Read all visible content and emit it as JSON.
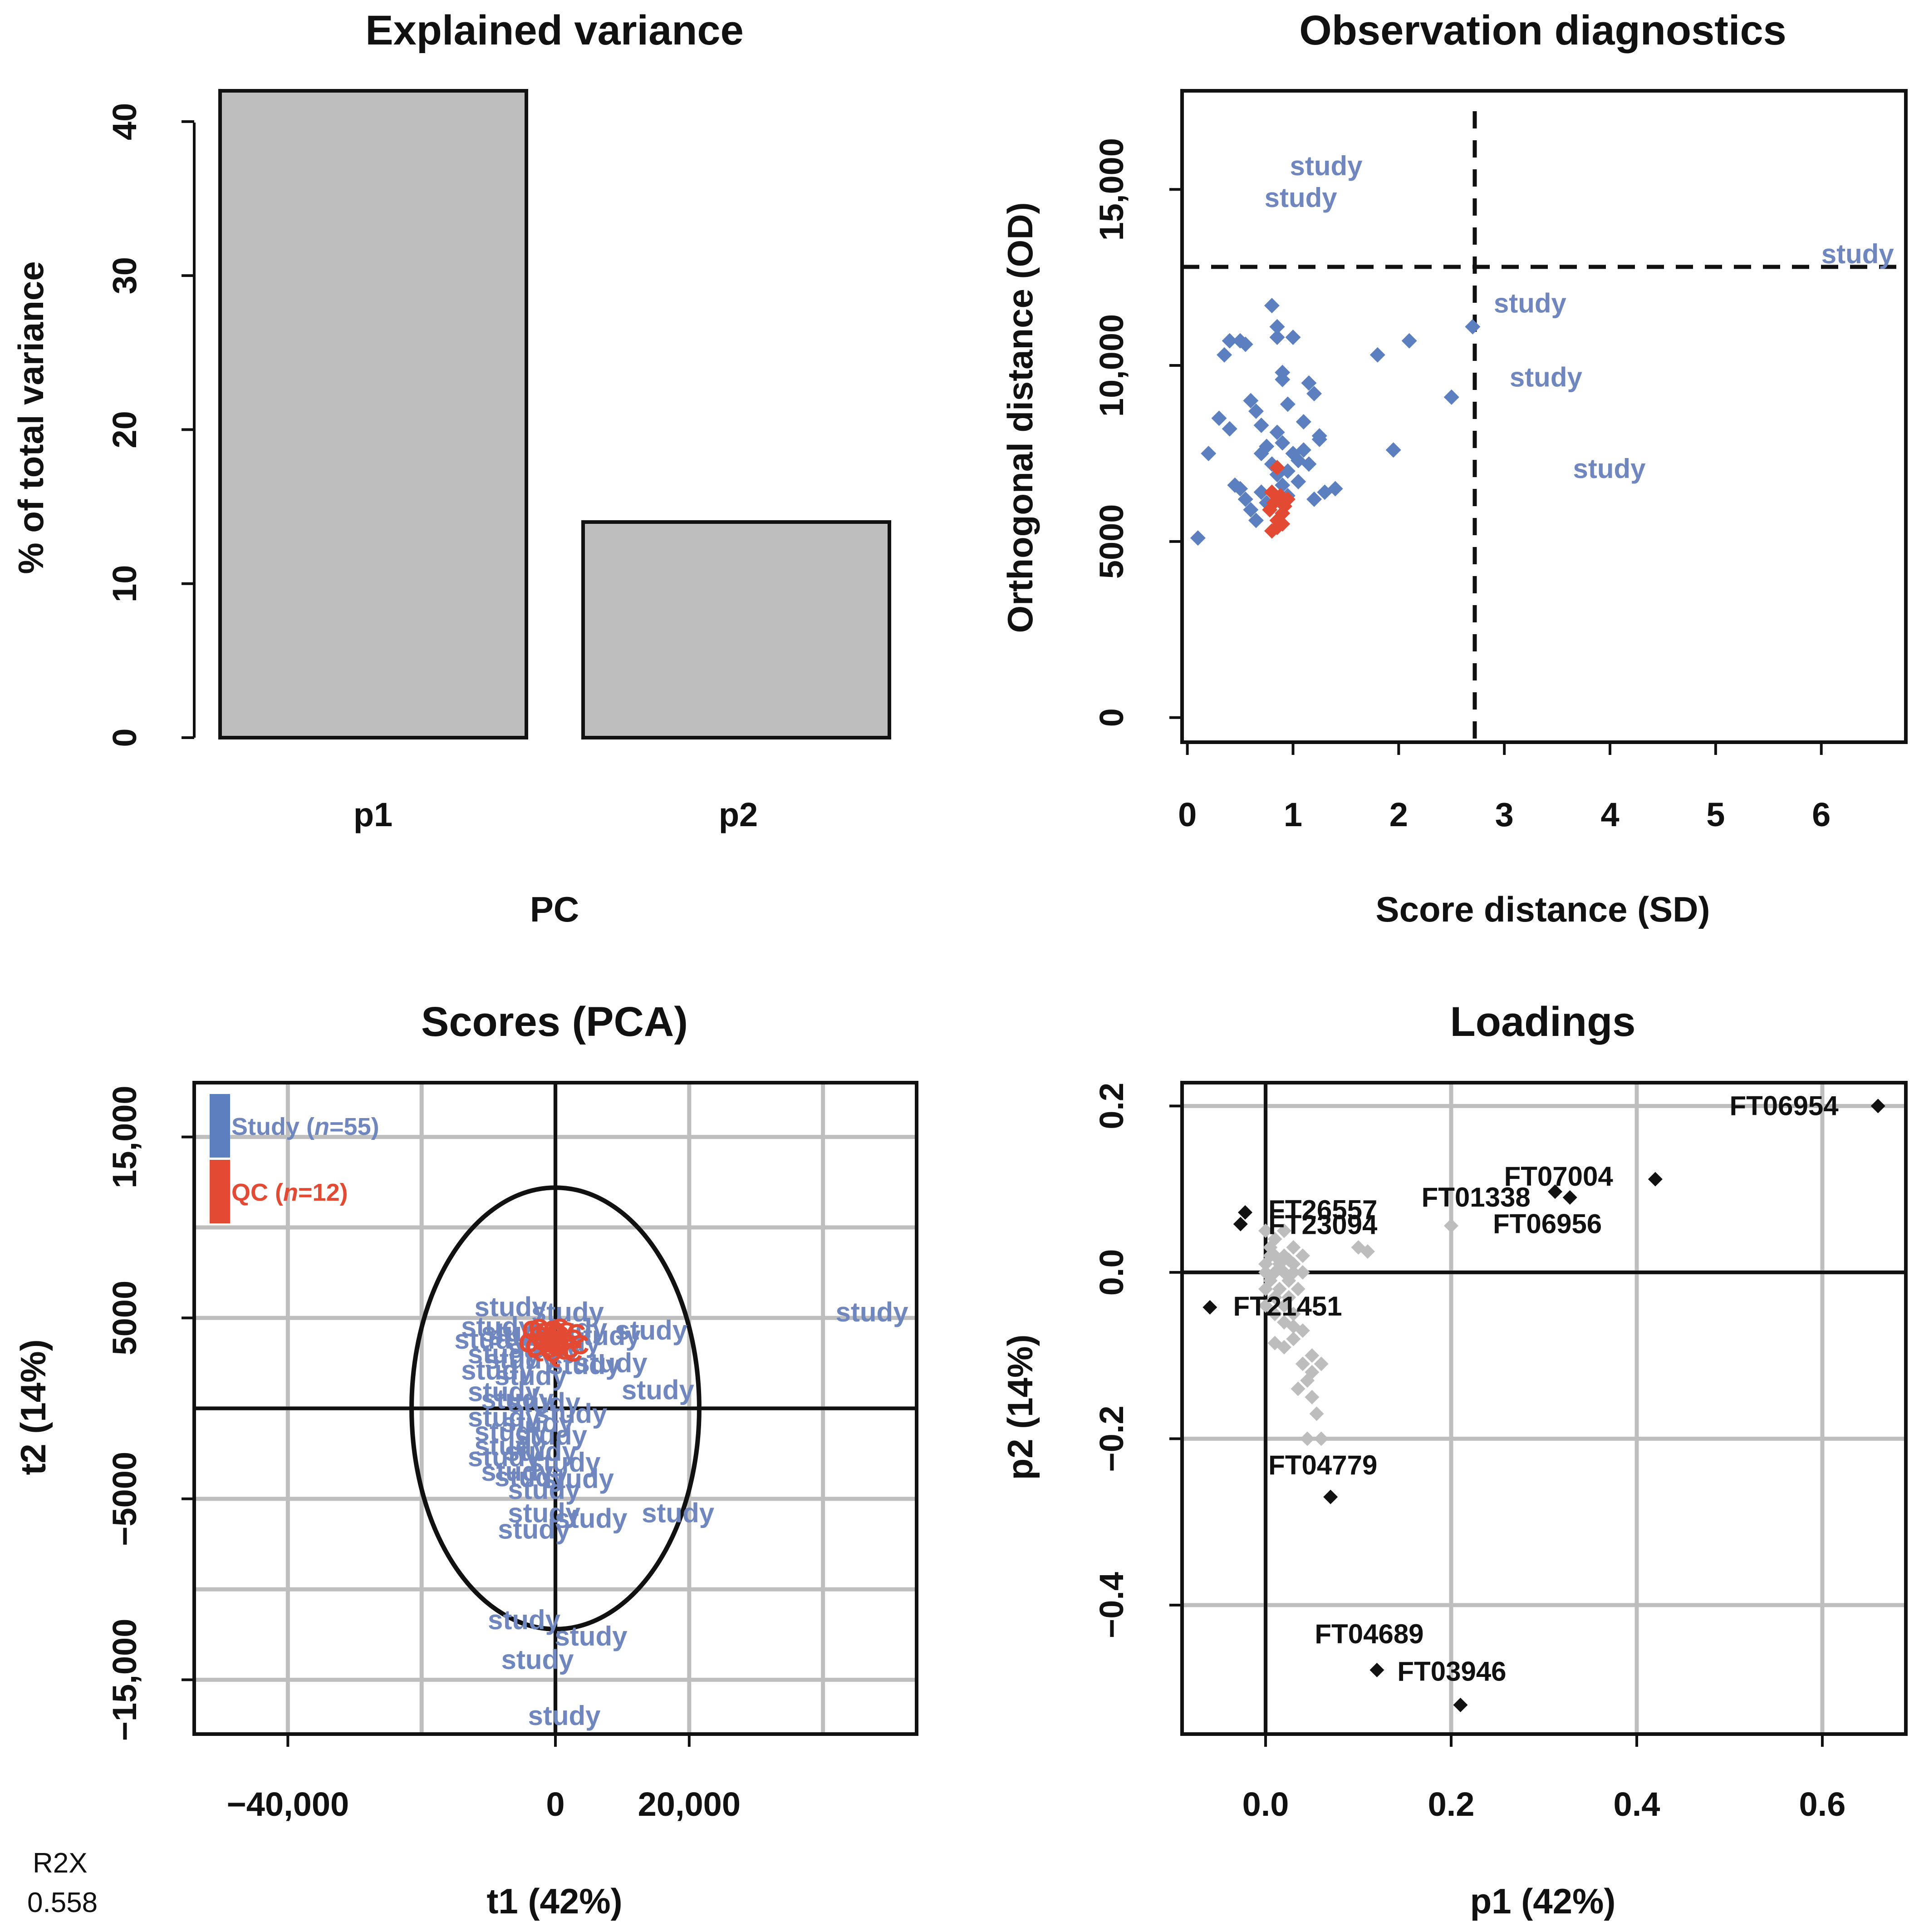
{
  "r2x": {
    "label": "R2X",
    "value": "0.558"
  },
  "colors": {
    "study": "#5b7fbf",
    "study_text": "#6f87be",
    "qc": "#e34a33",
    "bar": "#bebebe",
    "grid": "#bebebe",
    "black": "#111111",
    "loading_grey": "#bdbdbd"
  },
  "chart_data": [
    {
      "id": "explained",
      "type": "bar",
      "title": "Explained variance",
      "xlabel": "PC",
      "ylabel": "% of total variance",
      "categories": [
        "p1",
        "p2"
      ],
      "values": [
        42,
        14
      ],
      "ylim": [
        0,
        42
      ],
      "yticks": [
        0,
        10,
        20,
        30,
        40
      ],
      "ytick_labels": [
        "0",
        "10",
        "20",
        "30",
        "40"
      ]
    },
    {
      "id": "diagnostics",
      "type": "scatter",
      "title": "Observation diagnostics",
      "xlabel": "Score distance (SD)",
      "ylabel": "Orthogonal distance (OD)",
      "xlim": [
        -0.05,
        6.8
      ],
      "ylim": [
        -700,
        17800
      ],
      "xticks": [
        0,
        1,
        2,
        3,
        4,
        5,
        6
      ],
      "xtick_labels": [
        "0",
        "1",
        "2",
        "3",
        "4",
        "5",
        "6"
      ],
      "yticks": [
        0,
        5000,
        10000,
        15000
      ],
      "ytick_labels": [
        "0",
        "5000",
        "10,000",
        "15,000"
      ],
      "sd_cutoff": 2.72,
      "od_cutoff": 12800,
      "study": [
        [
          0.1,
          5100
        ],
        [
          0.2,
          7500
        ],
        [
          0.3,
          8500
        ],
        [
          0.35,
          10300
        ],
        [
          0.4,
          10700
        ],
        [
          0.45,
          6600
        ],
        [
          0.5,
          10700
        ],
        [
          0.55,
          10600
        ],
        [
          0.55,
          6200
        ],
        [
          0.6,
          9000
        ],
        [
          0.6,
          5900
        ],
        [
          0.65,
          5600
        ],
        [
          0.7,
          6400
        ],
        [
          0.7,
          7500
        ],
        [
          0.7,
          8300
        ],
        [
          0.75,
          7700
        ],
        [
          0.75,
          6100
        ],
        [
          0.8,
          11700
        ],
        [
          0.8,
          7200
        ],
        [
          0.85,
          8100
        ],
        [
          0.85,
          10800
        ],
        [
          0.85,
          11100
        ],
        [
          0.85,
          6900
        ],
        [
          0.9,
          9600
        ],
        [
          0.9,
          9800
        ],
        [
          0.9,
          7800
        ],
        [
          0.9,
          6600
        ],
        [
          0.95,
          6300
        ],
        [
          0.95,
          7000
        ],
        [
          1.0,
          10800
        ],
        [
          1.0,
          7500
        ],
        [
          1.05,
          7300
        ],
        [
          1.05,
          6700
        ],
        [
          1.1,
          8400
        ],
        [
          1.1,
          7600
        ],
        [
          1.15,
          7200
        ],
        [
          1.15,
          9500
        ],
        [
          1.2,
          9200
        ],
        [
          1.2,
          6200
        ],
        [
          1.25,
          7900
        ],
        [
          1.25,
          8000
        ],
        [
          1.3,
          6400
        ],
        [
          1.4,
          6500
        ],
        [
          0.4,
          8200
        ],
        [
          0.5,
          6500
        ],
        [
          0.65,
          8700
        ],
        [
          0.95,
          8900
        ],
        [
          1.8,
          10300
        ],
        [
          1.95,
          7600
        ],
        [
          2.1,
          10700
        ],
        [
          2.5,
          9100
        ],
        [
          2.7,
          11100
        ]
      ],
      "qc": [
        [
          0.8,
          6400
        ],
        [
          0.8,
          5300
        ],
        [
          0.82,
          6100
        ],
        [
          0.85,
          7100
        ],
        [
          0.85,
          5600
        ],
        [
          0.88,
          6300
        ],
        [
          0.9,
          5800
        ],
        [
          0.92,
          6000
        ],
        [
          0.95,
          6200
        ],
        [
          0.85,
          5400
        ],
        [
          0.78,
          5900
        ],
        [
          0.9,
          5500
        ]
      ],
      "labels": [
        {
          "text": "study",
          "x": 0.97,
          "y": 15400
        },
        {
          "text": "study",
          "x": 0.73,
          "y": 14500
        },
        {
          "text": "study",
          "x": 6.0,
          "y": 12900
        },
        {
          "text": "study",
          "x": 2.9,
          "y": 11500
        },
        {
          "text": "study",
          "x": 3.05,
          "y": 9400
        },
        {
          "text": "study",
          "x": 3.65,
          "y": 6800
        }
      ]
    },
    {
      "id": "scores",
      "type": "scatter",
      "title": "Scores (PCA)",
      "xlabel": "t1 (42%)",
      "ylabel": "t2 (14%)",
      "xlim": [
        -54000,
        54000
      ],
      "ylim": [
        -18000,
        18000
      ],
      "xgrid": [
        -40000,
        -20000,
        0,
        20000,
        40000
      ],
      "ygrid": [
        -15000,
        -10000,
        -5000,
        0,
        5000,
        10000,
        15000
      ],
      "xticks": [
        -40000,
        0,
        20000
      ],
      "xtick_labels": [
        "−40,000",
        "0",
        "20,000"
      ],
      "yticks": [
        -15000,
        -5000,
        5000,
        15000
      ],
      "ytick_labels": [
        "−15,000",
        "−5000",
        "5000",
        "15,000"
      ],
      "ellipse": {
        "rx": 21500,
        "ry": 12200
      },
      "legend": [
        {
          "label": "Study (",
          "n_label": "n",
          "count": "=55)",
          "color": "#5b7fbf"
        },
        {
          "label": "QC (",
          "n_label": "n",
          "count": "=12)",
          "color": "#e34a33"
        }
      ],
      "study_labels": [
        [
          -6000,
          5600
        ],
        [
          2500,
          5300
        ],
        [
          -8000,
          4500
        ],
        [
          -5000,
          4200
        ],
        [
          3000,
          4400
        ],
        [
          15000,
          4300
        ],
        [
          -4000,
          4000
        ],
        [
          8000,
          4000
        ],
        [
          -7000,
          3000
        ],
        [
          5000,
          2400
        ],
        [
          9000,
          2500
        ],
        [
          -8000,
          2100
        ],
        [
          -3000,
          1800
        ],
        [
          16000,
          1000
        ],
        [
          -7000,
          900
        ],
        [
          -5000,
          500
        ],
        [
          -1000,
          300
        ],
        [
          3000,
          -300
        ],
        [
          -7000,
          -500
        ],
        [
          -2000,
          -800
        ],
        [
          -6000,
          -1300
        ],
        [
          0,
          -1500
        ],
        [
          -6000,
          -2100
        ],
        [
          -1500,
          -2400
        ],
        [
          -7000,
          -2700
        ],
        [
          2000,
          -3000
        ],
        [
          -5000,
          -3500
        ],
        [
          -3000,
          -3800
        ],
        [
          4000,
          -3900
        ],
        [
          -1000,
          -4500
        ],
        [
          -1000,
          -5800
        ],
        [
          6000,
          -6100
        ],
        [
          19000,
          -5800
        ],
        [
          -2500,
          -6700
        ],
        [
          -4000,
          -11700
        ],
        [
          6000,
          -12600
        ],
        [
          -2000,
          -13900
        ],
        [
          2000,
          -17000
        ],
        [
          48000,
          5300
        ],
        [
          -9000,
          3800
        ],
        [
          -1000,
          3300
        ],
        [
          2000,
          3600
        ],
        [
          -4500,
          2700
        ]
      ],
      "qc_points": [
        [
          -3000,
          4300
        ],
        [
          -2000,
          4000
        ],
        [
          -1000,
          4200
        ],
        [
          0,
          3800
        ],
        [
          -2500,
          3400
        ],
        [
          -500,
          3300
        ],
        [
          1000,
          3500
        ],
        [
          -1500,
          3700
        ],
        [
          500,
          4100
        ],
        [
          -3500,
          3600
        ],
        [
          -2000,
          4400
        ],
        [
          0,
          3100
        ]
      ]
    },
    {
      "id": "loadings",
      "type": "scatter",
      "title": "Loadings",
      "xlabel": "p1 (42%)",
      "ylabel": "p2 (14%)",
      "xlim": [
        -0.09,
        0.69
      ],
      "ylim": [
        -0.555,
        0.228
      ],
      "xgrid": [
        0.0,
        0.2,
        0.4,
        0.6
      ],
      "ygrid": [
        -0.4,
        -0.2,
        0.0,
        0.2
      ],
      "xticks": [
        0.0,
        0.2,
        0.4,
        0.6
      ],
      "xtick_labels": [
        "0.0",
        "0.2",
        "0.4",
        "0.6"
      ],
      "yticks": [
        -0.4,
        -0.2,
        0.0,
        0.2
      ],
      "ytick_labels": [
        "−0.4",
        "−0.2",
        "0.0",
        "0.2"
      ],
      "grey_points": [
        [
          0.0,
          0.05
        ],
        [
          0.005,
          0.03
        ],
        [
          0.01,
          0.02
        ],
        [
          0.015,
          0.01
        ],
        [
          0.02,
          0.0
        ],
        [
          0.025,
          -0.01
        ],
        [
          0.03,
          0.0
        ],
        [
          0.0,
          -0.02
        ],
        [
          0.01,
          -0.03
        ],
        [
          0.02,
          -0.04
        ],
        [
          0.03,
          -0.05
        ],
        [
          0.01,
          0.04
        ],
        [
          0.02,
          0.05
        ],
        [
          0.03,
          0.03
        ],
        [
          0.04,
          0.02
        ],
        [
          0.005,
          -0.01
        ],
        [
          0.015,
          -0.02
        ],
        [
          0.025,
          -0.03
        ],
        [
          0.035,
          -0.02
        ],
        [
          0.0,
          0.0
        ],
        [
          0.04,
          -0.07
        ],
        [
          0.03,
          -0.08
        ],
        [
          0.02,
          -0.09
        ],
        [
          0.01,
          -0.085
        ],
        [
          0.05,
          -0.1
        ],
        [
          0.04,
          -0.11
        ],
        [
          0.05,
          -0.12
        ],
        [
          0.06,
          -0.11
        ],
        [
          0.045,
          -0.13
        ],
        [
          0.035,
          -0.14
        ],
        [
          0.05,
          -0.15
        ],
        [
          0.055,
          -0.17
        ],
        [
          0.06,
          -0.2
        ],
        [
          0.045,
          -0.2
        ],
        [
          0.1,
          0.03
        ],
        [
          0.11,
          0.025
        ],
        [
          0.2,
          0.056
        ],
        [
          0.0,
          0.01
        ],
        [
          0.01,
          0.0
        ],
        [
          0.02,
          0.02
        ],
        [
          0.03,
          0.01
        ],
        [
          0.04,
          0.0
        ],
        [
          0.025,
          0.015
        ],
        [
          0.015,
          0.005
        ],
        [
          0.005,
          0.02
        ],
        [
          0.0,
          -0.04
        ],
        [
          0.02,
          -0.06
        ],
        [
          0.03,
          -0.065
        ],
        [
          0.01,
          -0.05
        ]
      ],
      "black_points": [
        {
          "name": "FT06954",
          "x": 0.66,
          "y": 0.2,
          "lx": 0.5,
          "ly": 0.2
        },
        {
          "name": "FT07004",
          "x": 0.42,
          "y": 0.112,
          "lx": 0.257,
          "ly": 0.115
        },
        {
          "name": "FT01338",
          "x": 0.312,
          "y": 0.097,
          "lx": 0.168,
          "ly": 0.09
        },
        {
          "name": "FT06956",
          "x": 0.328,
          "y": 0.09,
          "lx": 0.245,
          "ly": 0.058
        },
        {
          "name": "FT26557",
          "x": -0.022,
          "y": 0.072,
          "lx": 0.003,
          "ly": 0.075
        },
        {
          "name": "FT23094",
          "x": -0.027,
          "y": 0.058,
          "lx": 0.003,
          "ly": 0.057
        },
        {
          "name": "FT21451",
          "x": -0.06,
          "y": -0.042,
          "lx": -0.035,
          "ly": -0.041
        },
        {
          "name": "FT04779",
          "x": 0.07,
          "y": -0.27,
          "lx": 0.003,
          "ly": -0.232
        },
        {
          "name": "FT04689",
          "x": 0.12,
          "y": -0.478,
          "lx": 0.053,
          "ly": -0.435
        },
        {
          "name": "FT03946",
          "x": 0.21,
          "y": -0.52,
          "lx": 0.142,
          "ly": -0.48
        }
      ]
    }
  ]
}
